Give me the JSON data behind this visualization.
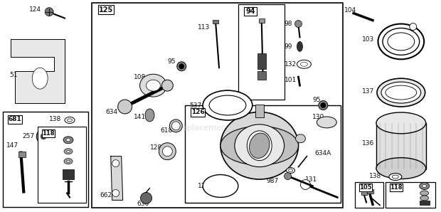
{
  "bg_color": "#ffffff",
  "fig_width": 6.2,
  "fig_height": 2.98,
  "watermark": "eReplacementParts.com"
}
